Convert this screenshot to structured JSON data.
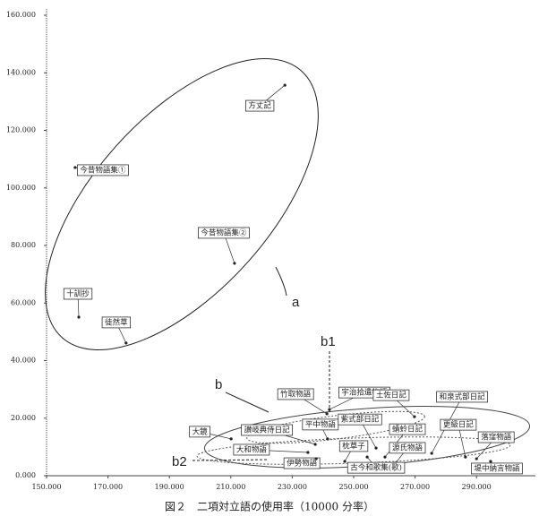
{
  "chart_data": {
    "type": "scatter",
    "caption": "図２　二項対立語の使用率（10000 分率）",
    "annotations": [
      "a",
      "b",
      "b1",
      "b2"
    ],
    "xlim": [
      150,
      310
    ],
    "ylim": [
      0,
      160
    ],
    "xticks": [
      {
        "value": 150,
        "label": "150.000"
      },
      {
        "value": 170,
        "label": "170.000"
      },
      {
        "value": 190,
        "label": "190.000"
      },
      {
        "value": 210,
        "label": "210.000"
      },
      {
        "value": 230,
        "label": "230.000"
      },
      {
        "value": 250,
        "label": "250.000"
      },
      {
        "value": 270,
        "label": "270.000"
      },
      {
        "value": 290,
        "label": "290.000"
      }
    ],
    "yticks": [
      {
        "value": 0,
        "label": "0.000"
      },
      {
        "value": 20,
        "label": "20.000"
      },
      {
        "value": 40,
        "label": "40.000"
      },
      {
        "value": 60,
        "label": "60.000"
      },
      {
        "value": 80,
        "label": "80.000"
      },
      {
        "value": 100,
        "label": "100.000"
      },
      {
        "value": 120,
        "label": "120.000"
      },
      {
        "value": 140,
        "label": "140.000"
      },
      {
        "value": 160,
        "label": "160.000"
      }
    ],
    "color": "#222222",
    "points": [
      {
        "label": "方丈記",
        "x": 227.6,
        "y": 135.7
      },
      {
        "label": "今昔物語集①",
        "x": 159.3,
        "y": 107.1
      },
      {
        "label": "今昔物語集②",
        "x": 211.2,
        "y": 73.8
      },
      {
        "label": "十訓抄",
        "x": 160.5,
        "y": 55.1
      },
      {
        "label": "徒然草",
        "x": 175.9,
        "y": 46.1
      },
      {
        "label": "竹取物語",
        "x": 241.3,
        "y": 21.5
      },
      {
        "label": "宇治拾遺物語",
        "x": 242.1,
        "y": 23.0
      },
      {
        "label": "土佐日記",
        "x": 269.8,
        "y": 20.5
      },
      {
        "label": "和泉式部日記",
        "x": 275.4,
        "y": 7.8
      },
      {
        "label": "大鏡",
        "x": 210.1,
        "y": 12.8
      },
      {
        "label": "平中物語",
        "x": 241.5,
        "y": 12.8
      },
      {
        "label": "紫式部日記",
        "x": 257.3,
        "y": 9.6
      },
      {
        "label": "讃岐典侍日記",
        "x": 237.5,
        "y": 10.9
      },
      {
        "label": "蜻蛉日記",
        "x": 260.2,
        "y": 6.5
      },
      {
        "label": "更級日記",
        "x": 286.4,
        "y": 6.5
      },
      {
        "label": "落窪物語",
        "x": 290.0,
        "y": 5.9
      },
      {
        "label": "大和物語",
        "x": 235.1,
        "y": 8.1
      },
      {
        "label": "源氏物語",
        "x": 263.7,
        "y": 4.4
      },
      {
        "label": "枕草子",
        "x": 247.1,
        "y": 5.0
      },
      {
        "label": "伊勢物語",
        "x": 237.8,
        "y": 5.9
      },
      {
        "label": "古今和歌集(歌)",
        "x": 254.4,
        "y": 6.5
      },
      {
        "label": "堤中納言物語",
        "x": 294.6,
        "y": 5.0
      }
    ]
  }
}
